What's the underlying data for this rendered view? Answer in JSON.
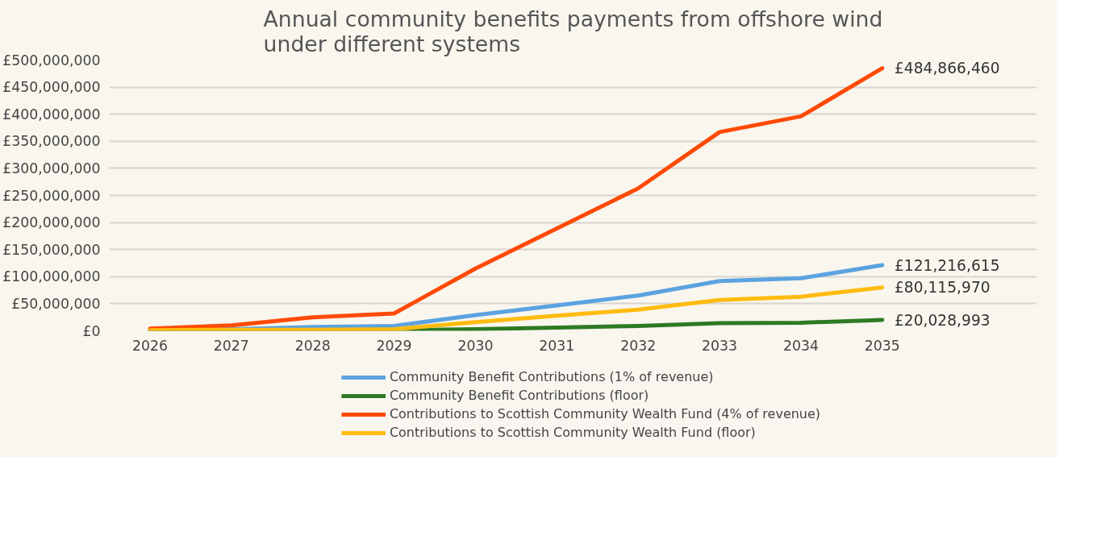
{
  "chart_data": {
    "type": "line",
    "title": "Annual community benefits payments from offshore wind\nunder different systems",
    "categories": [
      "2026",
      "2027",
      "2028",
      "2029",
      "2030",
      "2031",
      "2032",
      "2033",
      "2034",
      "2035"
    ],
    "series": [
      {
        "name": "Community Benefit Contributions (1% of revenue)",
        "color": "#5ba3e0",
        "values": [
          1000000,
          3000000,
          7000000,
          9000000,
          29000000,
          47000000,
          65000000,
          92000000,
          97000000,
          121216615
        ]
      },
      {
        "name": "Community Benefit Contributions (floor)",
        "color": "#2e7a23",
        "values": [
          0,
          0,
          1000000,
          1000000,
          3000000,
          6000000,
          9000000,
          14000000,
          15000000,
          20028993
        ]
      },
      {
        "name": "Contributions to Scottish Community Wealth Fund (4% of revenue)",
        "color": "#ff4a05",
        "values": [
          4000000,
          10000000,
          25000000,
          32000000,
          115000000,
          189000000,
          263000000,
          367000000,
          396000000,
          484866460
        ]
      },
      {
        "name": "Contributions to Scottish Community Wealth Fund (floor)",
        "color": "#ffbc10",
        "values": [
          1000000,
          2000000,
          2000000,
          3000000,
          16000000,
          28000000,
          39000000,
          57000000,
          63000000,
          80115970
        ]
      }
    ],
    "annotations": [
      {
        "text": "£484,866,460",
        "x": "2035",
        "y": 484866460
      },
      {
        "text": "£121,216,615",
        "x": "2035",
        "y": 121216615
      },
      {
        "text": "£80,115,970",
        "x": "2035",
        "y": 80115970
      },
      {
        "text": "£20,028,993",
        "x": "2035",
        "y": 20028993
      }
    ],
    "ylim": [
      0,
      500000000
    ],
    "yticks": [
      {
        "value": 0,
        "label": "£0"
      },
      {
        "value": 50000000,
        "label": "£50,000,000"
      },
      {
        "value": 100000000,
        "label": "£100,000,000"
      },
      {
        "value": 150000000,
        "label": "£150,000,000"
      },
      {
        "value": 200000000,
        "label": "£200,000,000"
      },
      {
        "value": 250000000,
        "label": "£250,000,000"
      },
      {
        "value": 300000000,
        "label": "£300,000,000"
      },
      {
        "value": 350000000,
        "label": "£350,000,000"
      },
      {
        "value": 400000000,
        "label": "£400,000,000"
      },
      {
        "value": 450000000,
        "label": "£450,000,000"
      },
      {
        "value": 500000000,
        "label": "£500,000,000"
      }
    ],
    "grid": "y",
    "legend": "bottom",
    "marker": "none",
    "line_style": "solid"
  }
}
